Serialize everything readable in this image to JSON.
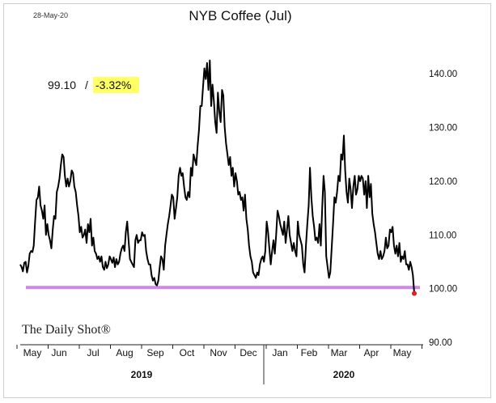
{
  "date_stamp": "28-May-20",
  "logo": "The Daily Shot®",
  "annotation": {
    "value": "99.10",
    "separator": "/",
    "change": "-3.32%",
    "highlight_color": "#ffff66"
  },
  "chart_data": {
    "type": "line",
    "title": "NYB Coffee (Jul)",
    "ylim": [
      90,
      145
    ],
    "y_ticks": [
      "90.00",
      "100.00",
      "110.00",
      "120.00",
      "130.00",
      "140.00"
    ],
    "y_tick_values": [
      90,
      100,
      110,
      120,
      130,
      140
    ],
    "x_month_labels": [
      "May",
      "Jun",
      "Jul",
      "Aug",
      "Sep",
      "Oct",
      "Nov",
      "Dec",
      "Jan",
      "Feb",
      "Mar",
      "Apr",
      "May"
    ],
    "year_labels": [
      "2019",
      "2020"
    ],
    "reference_line": {
      "value": 100.2,
      "color": "#cc88ee"
    },
    "line_color": "#000000",
    "last_point": {
      "value": 99.1,
      "color": "#e02020"
    },
    "series": [
      {
        "values": [
          104.5,
          104.0,
          103.2,
          104.8,
          105.0,
          103.0,
          104.2,
          106.5,
          107.0,
          106.8,
          108.0,
          112.5,
          116.5,
          117.0,
          119.0,
          115.5,
          114.5,
          113.0,
          115.5,
          110.0,
          112.0,
          110.0,
          109.0,
          107.5,
          111.0,
          113.5,
          113.0,
          118.0,
          119.0,
          120.5,
          123.0,
          125.0,
          124.5,
          121.0,
          119.0,
          120.5,
          119.0,
          120.0,
          122.0,
          121.5,
          119.0,
          118.0,
          115.5,
          113.5,
          110.5,
          111.5,
          109.5,
          110.0,
          111.0,
          108.5,
          112.0,
          110.5,
          113.0,
          108.0,
          109.5,
          107.0,
          106.5,
          105.5,
          106.0,
          105.0,
          106.0,
          104.0,
          103.5,
          105.0,
          103.8,
          104.5,
          106.0,
          105.5,
          104.8,
          105.8,
          104.0,
          105.5,
          104.5,
          105.0,
          106.5,
          107.5,
          108.0,
          107.0,
          110.5,
          112.5,
          109.0,
          105.5,
          105.0,
          104.5,
          104.0,
          109.0,
          110.0,
          108.5,
          109.0,
          109.0,
          110.5,
          109.8,
          110.0,
          107.0,
          105.5,
          104.5,
          104.5,
          102.5,
          101.5,
          102.0,
          100.8,
          100.6,
          101.5,
          104.0,
          106.0,
          105.5,
          103.5,
          108.0,
          110.0,
          112.0,
          113.5,
          115.5,
          117.5,
          117.0,
          113.0,
          115.0,
          117.0,
          121.0,
          122.5,
          121.0,
          121.5,
          119.0,
          117.0,
          116.5,
          118.0,
          117.0,
          122.5,
          121.0,
          125.0,
          124.0,
          123.0,
          126.5,
          129.5,
          134.0,
          134.0,
          137.5,
          141.0,
          139.0,
          142.0,
          137.0,
          142.5,
          134.0,
          138.0,
          135.0,
          131.0,
          129.0,
          136.5,
          133.0,
          131.0,
          137.0,
          136.0,
          130.0,
          127.0,
          125.0,
          123.0,
          124.5,
          121.0,
          122.5,
          119.0,
          121.5,
          120.0,
          117.5,
          118.0,
          116.5,
          117.0,
          114.5,
          117.5,
          113.0,
          111.0,
          108.0,
          106.0,
          105.0,
          103.0,
          102.5,
          102.0,
          103.0,
          102.5,
          104.5,
          105.5,
          106.0,
          105.0,
          107.0,
          112.5,
          110.5,
          107.5,
          104.5,
          107.0,
          109.0,
          106.5,
          110.0,
          114.5,
          113.5,
          112.0,
          111.0,
          110.0,
          112.5,
          108.5,
          111.0,
          113.5,
          110.0,
          108.5,
          107.0,
          108.5,
          107.0,
          106.0,
          112.5,
          110.0,
          109.0,
          108.0,
          104.5,
          103.0,
          108.0,
          112.0,
          115.5,
          122.5,
          117.0,
          113.5,
          111.5,
          109.0,
          109.5,
          108.5,
          112.0,
          108.0,
          115.0,
          121.0,
          118.0,
          106.0,
          104.0,
          102.0,
          103.0,
          107.5,
          112.0,
          117.0,
          116.0,
          118.0,
          121.0,
          120.0,
          125.0,
          124.0,
          128.5,
          122.0,
          118.0,
          116.0,
          120.5,
          118.5,
          115.0,
          119.0,
          121.0,
          117.5,
          118.5,
          121.0,
          120.0,
          121.0,
          120.5,
          117.5,
          120.0,
          115.0,
          121.0,
          117.0,
          119.5,
          114.0,
          112.0,
          110.5,
          108.5,
          106.5,
          105.5,
          107.0,
          105.5,
          106.0,
          107.0,
          109.5,
          107.5,
          108.0,
          111.0,
          110.5,
          111.5,
          108.0,
          106.5,
          108.0,
          106.0,
          108.5,
          105.0,
          106.0,
          105.5,
          107.0,
          104.5,
          104.5,
          103.5,
          105.0,
          104.0,
          102.5,
          99.1
        ]
      }
    ]
  }
}
